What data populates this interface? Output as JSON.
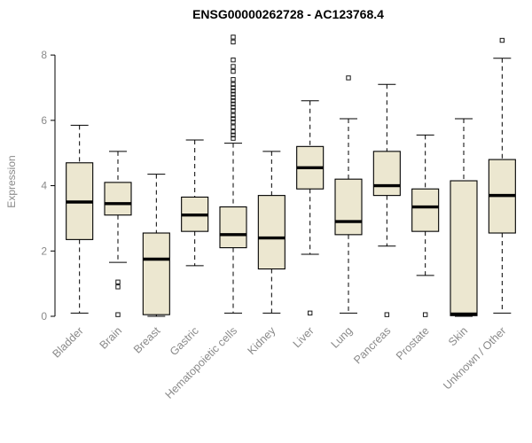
{
  "chart_data": {
    "type": "boxplot",
    "title": "ENSG00000262728 - AC123768.4",
    "ylabel": "Expression",
    "xlabel": "",
    "ylim": [
      0,
      8.6
    ],
    "yticks": [
      0,
      2,
      4,
      6,
      8
    ],
    "grid": false,
    "legend": "none",
    "label_color": "#8a8a8a",
    "box_fill": "#ece7d0",
    "box_stroke": "#000000",
    "categories": [
      "Bladder",
      "Brain",
      "Breast",
      "Gastric",
      "Hematopoietic cells",
      "Kidney",
      "Liver",
      "Lung",
      "Pancreas",
      "Prostate",
      "Skin",
      "Unknown / Other"
    ],
    "series": [
      {
        "name": "Bladder",
        "low": 0.1,
        "q1": 2.35,
        "median": 3.5,
        "q3": 4.7,
        "high": 5.85,
        "outliers": []
      },
      {
        "name": "Brain",
        "low": 1.65,
        "q1": 3.1,
        "median": 3.45,
        "q3": 4.1,
        "high": 5.05,
        "outliers": [
          1.05,
          0.9,
          0.05
        ]
      },
      {
        "name": "Breast",
        "low": 0.0,
        "q1": 0.05,
        "median": 1.75,
        "q3": 2.55,
        "high": 4.35,
        "outliers": []
      },
      {
        "name": "Gastric",
        "low": 1.55,
        "q1": 2.6,
        "median": 3.1,
        "q3": 3.65,
        "high": 5.4,
        "outliers": []
      },
      {
        "name": "Hematopoietic cells",
        "low": 0.1,
        "q1": 2.1,
        "median": 2.5,
        "q3": 3.35,
        "high": 5.3,
        "outliers": [
          5.45,
          5.55,
          5.65,
          5.8,
          5.95,
          6.05,
          6.15,
          6.3,
          6.4,
          6.5,
          6.6,
          6.7,
          6.8,
          6.9,
          7.0,
          7.1,
          7.25,
          7.5,
          7.65,
          7.85,
          8.4,
          8.55
        ]
      },
      {
        "name": "Kidney",
        "low": 0.1,
        "q1": 1.45,
        "median": 2.4,
        "q3": 3.7,
        "high": 5.05,
        "outliers": []
      },
      {
        "name": "Liver",
        "low": 1.9,
        "q1": 3.9,
        "median": 4.55,
        "q3": 5.2,
        "high": 6.6,
        "outliers": [
          0.1
        ]
      },
      {
        "name": "Lung",
        "low": 0.1,
        "q1": 2.5,
        "median": 2.9,
        "q3": 4.2,
        "high": 6.05,
        "outliers": [
          7.3
        ]
      },
      {
        "name": "Pancreas",
        "low": 2.15,
        "q1": 3.7,
        "median": 4.0,
        "q3": 5.05,
        "high": 7.1,
        "outliers": [
          0.05
        ]
      },
      {
        "name": "Prostate",
        "low": 1.25,
        "q1": 2.6,
        "median": 3.35,
        "q3": 3.9,
        "high": 5.55,
        "outliers": [
          0.05
        ]
      },
      {
        "name": "Skin",
        "low": 0.0,
        "q1": 0.02,
        "median": 0.07,
        "q3": 4.15,
        "high": 6.05,
        "outliers": []
      },
      {
        "name": "Unknown / Other",
        "low": 0.1,
        "q1": 2.55,
        "median": 3.7,
        "q3": 4.8,
        "high": 7.9,
        "outliers": [
          8.45
        ]
      }
    ]
  }
}
